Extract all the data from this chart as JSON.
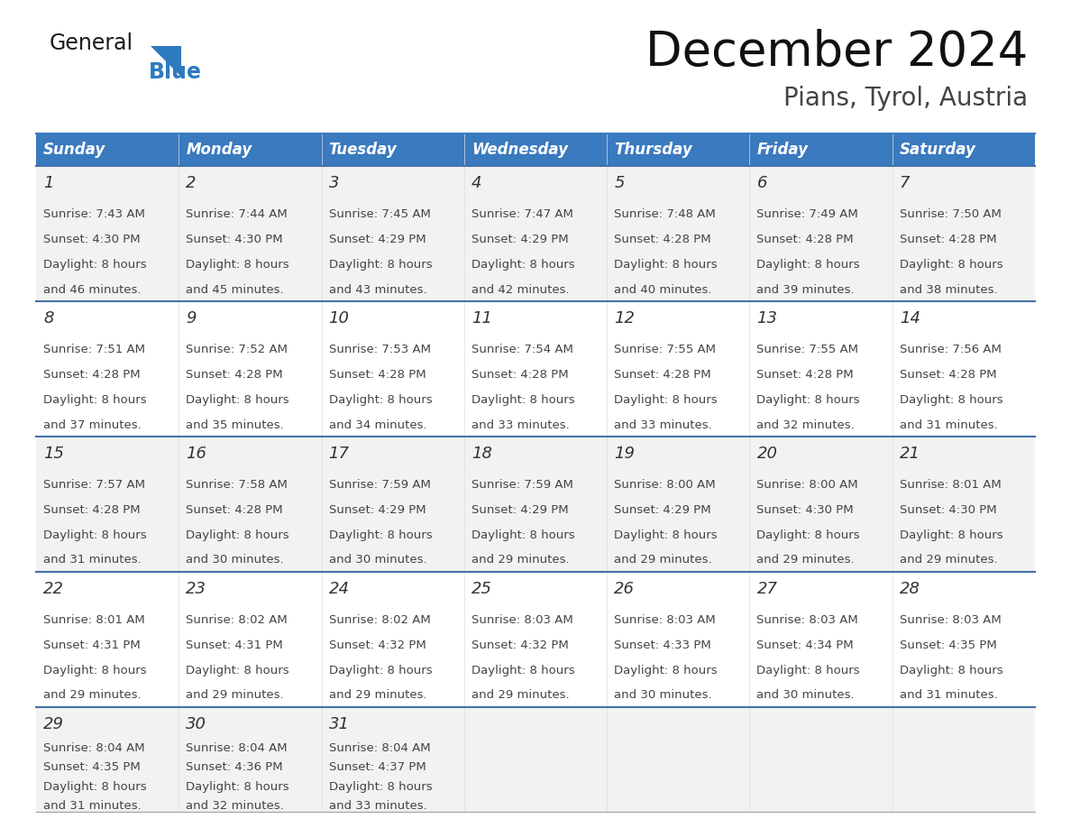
{
  "title": "December 2024",
  "subtitle": "Pians, Tyrol, Austria",
  "header_bg_color": "#3a7abf",
  "header_text_color": "#ffffff",
  "row_bg_colors": [
    "#f2f2f2",
    "#ffffff",
    "#f2f2f2",
    "#ffffff",
    "#f2f2f2"
  ],
  "border_color": "#3a7abf",
  "row_line_color": "#4472a8",
  "bottom_border_color": "#aaaaaa",
  "text_color": "#444444",
  "day_num_color": "#333333",
  "day_headers": [
    "Sunday",
    "Monday",
    "Tuesday",
    "Wednesday",
    "Thursday",
    "Friday",
    "Saturday"
  ],
  "logo_general_color": "#1a1a1a",
  "logo_blue_color": "#2e7abf",
  "cells": [
    {
      "day": 1,
      "col": 0,
      "row": 0,
      "sunrise": "7:43 AM",
      "sunset": "4:30 PM",
      "daylight_mins": "46"
    },
    {
      "day": 2,
      "col": 1,
      "row": 0,
      "sunrise": "7:44 AM",
      "sunset": "4:30 PM",
      "daylight_mins": "45"
    },
    {
      "day": 3,
      "col": 2,
      "row": 0,
      "sunrise": "7:45 AM",
      "sunset": "4:29 PM",
      "daylight_mins": "43"
    },
    {
      "day": 4,
      "col": 3,
      "row": 0,
      "sunrise": "7:47 AM",
      "sunset": "4:29 PM",
      "daylight_mins": "42"
    },
    {
      "day": 5,
      "col": 4,
      "row": 0,
      "sunrise": "7:48 AM",
      "sunset": "4:28 PM",
      "daylight_mins": "40"
    },
    {
      "day": 6,
      "col": 5,
      "row": 0,
      "sunrise": "7:49 AM",
      "sunset": "4:28 PM",
      "daylight_mins": "39"
    },
    {
      "day": 7,
      "col": 6,
      "row": 0,
      "sunrise": "7:50 AM",
      "sunset": "4:28 PM",
      "daylight_mins": "38"
    },
    {
      "day": 8,
      "col": 0,
      "row": 1,
      "sunrise": "7:51 AM",
      "sunset": "4:28 PM",
      "daylight_mins": "37"
    },
    {
      "day": 9,
      "col": 1,
      "row": 1,
      "sunrise": "7:52 AM",
      "sunset": "4:28 PM",
      "daylight_mins": "35"
    },
    {
      "day": 10,
      "col": 2,
      "row": 1,
      "sunrise": "7:53 AM",
      "sunset": "4:28 PM",
      "daylight_mins": "34"
    },
    {
      "day": 11,
      "col": 3,
      "row": 1,
      "sunrise": "7:54 AM",
      "sunset": "4:28 PM",
      "daylight_mins": "33"
    },
    {
      "day": 12,
      "col": 4,
      "row": 1,
      "sunrise": "7:55 AM",
      "sunset": "4:28 PM",
      "daylight_mins": "33"
    },
    {
      "day": 13,
      "col": 5,
      "row": 1,
      "sunrise": "7:55 AM",
      "sunset": "4:28 PM",
      "daylight_mins": "32"
    },
    {
      "day": 14,
      "col": 6,
      "row": 1,
      "sunrise": "7:56 AM",
      "sunset": "4:28 PM",
      "daylight_mins": "31"
    },
    {
      "day": 15,
      "col": 0,
      "row": 2,
      "sunrise": "7:57 AM",
      "sunset": "4:28 PM",
      "daylight_mins": "31"
    },
    {
      "day": 16,
      "col": 1,
      "row": 2,
      "sunrise": "7:58 AM",
      "sunset": "4:28 PM",
      "daylight_mins": "30"
    },
    {
      "day": 17,
      "col": 2,
      "row": 2,
      "sunrise": "7:59 AM",
      "sunset": "4:29 PM",
      "daylight_mins": "30"
    },
    {
      "day": 18,
      "col": 3,
      "row": 2,
      "sunrise": "7:59 AM",
      "sunset": "4:29 PM",
      "daylight_mins": "29"
    },
    {
      "day": 19,
      "col": 4,
      "row": 2,
      "sunrise": "8:00 AM",
      "sunset": "4:29 PM",
      "daylight_mins": "29"
    },
    {
      "day": 20,
      "col": 5,
      "row": 2,
      "sunrise": "8:00 AM",
      "sunset": "4:30 PM",
      "daylight_mins": "29"
    },
    {
      "day": 21,
      "col": 6,
      "row": 2,
      "sunrise": "8:01 AM",
      "sunset": "4:30 PM",
      "daylight_mins": "29"
    },
    {
      "day": 22,
      "col": 0,
      "row": 3,
      "sunrise": "8:01 AM",
      "sunset": "4:31 PM",
      "daylight_mins": "29"
    },
    {
      "day": 23,
      "col": 1,
      "row": 3,
      "sunrise": "8:02 AM",
      "sunset": "4:31 PM",
      "daylight_mins": "29"
    },
    {
      "day": 24,
      "col": 2,
      "row": 3,
      "sunrise": "8:02 AM",
      "sunset": "4:32 PM",
      "daylight_mins": "29"
    },
    {
      "day": 25,
      "col": 3,
      "row": 3,
      "sunrise": "8:03 AM",
      "sunset": "4:32 PM",
      "daylight_mins": "29"
    },
    {
      "day": 26,
      "col": 4,
      "row": 3,
      "sunrise": "8:03 AM",
      "sunset": "4:33 PM",
      "daylight_mins": "30"
    },
    {
      "day": 27,
      "col": 5,
      "row": 3,
      "sunrise": "8:03 AM",
      "sunset": "4:34 PM",
      "daylight_mins": "30"
    },
    {
      "day": 28,
      "col": 6,
      "row": 3,
      "sunrise": "8:03 AM",
      "sunset": "4:35 PM",
      "daylight_mins": "31"
    },
    {
      "day": 29,
      "col": 0,
      "row": 4,
      "sunrise": "8:04 AM",
      "sunset": "4:35 PM",
      "daylight_mins": "31"
    },
    {
      "day": 30,
      "col": 1,
      "row": 4,
      "sunrise": "8:04 AM",
      "sunset": "4:36 PM",
      "daylight_mins": "32"
    },
    {
      "day": 31,
      "col": 2,
      "row": 4,
      "sunrise": "8:04 AM",
      "sunset": "4:37 PM",
      "daylight_mins": "33"
    }
  ]
}
